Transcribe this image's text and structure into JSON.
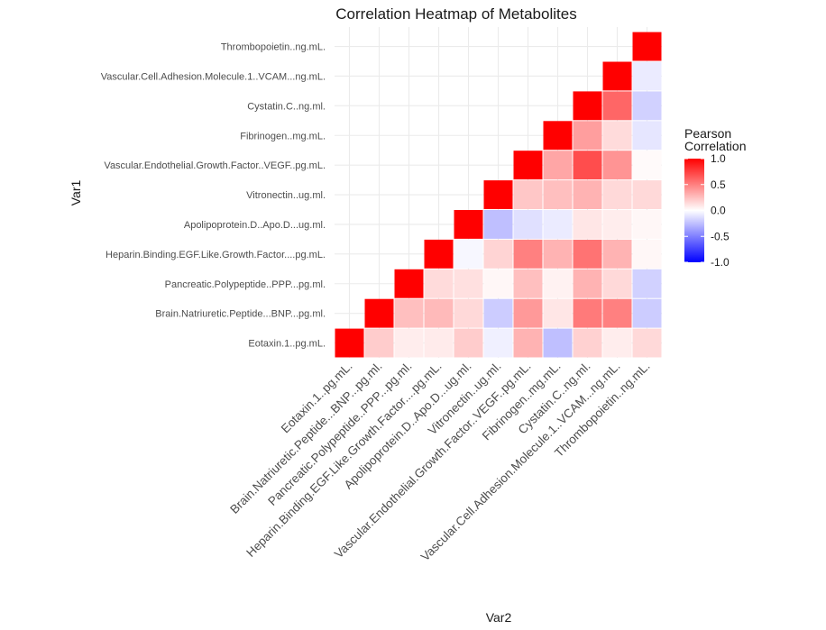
{
  "chart_data": {
    "type": "heatmap",
    "title": "Correlation Heatmap of Metabolites",
    "xlabel": "Var2",
    "ylabel": "Var1",
    "variables": [
      "Eotaxin.1..pg.mL.",
      "Brain.Natriuretic.Peptide...BNP...pg.ml.",
      "Pancreatic.Polypeptide..PPP...pg.ml.",
      "Heparin.Binding.EGF.Like.Growth.Factor....pg.mL.",
      "Apolipoprotein.D..Apo.D...ug.ml.",
      "Vitronectin..ug.ml.",
      "Vascular.Endothelial.Growth.Factor..VEGF..pg.mL.",
      "Fibrinogen..mg.mL.",
      "Cystatin.C..ng.ml.",
      "Vascular.Cell.Adhesion.Molecule.1..VCAM...ng.mL.",
      "Thrombopoietin..ng.mL."
    ],
    "x_tick_labels": [
      "Eotaxin.1..pg.mL.",
      "Brain.Natriuretic.Peptide...BNP...pg.ml.",
      "Pancreatic.Polypeptide..PPP...pg.ml.",
      "Heparin.Binding.EGF.Like.Growth.Factor....pg.mL.",
      "Apolipoprotein.D..Apo.D...ug.ml.",
      "Vitronectin..ug.ml.",
      "Vascular.Endothelial.Growth.Factor..VEGF..pg.mL.",
      "Fibrinogen..mg.mL.",
      "Cystatin.C..ng.ml.",
      "Vascular.Cell.Adhesion.Molecule.1..VCAM...ng.mL.",
      "Thrombopoietin..ng.mL."
    ],
    "y_tick_labels": [
      "Eotaxin.1..pg.mL.",
      "Brain.Natriuretic.Peptide...BNP...pg.ml.",
      "Pancreatic.Polypeptide..PPP...pg.ml.",
      "Heparin.Binding.EGF.Like.Growth.Factor....pg.mL.",
      "Apolipoprotein.D..Apo.D...ug.ml.",
      "Vitronectin..ug.ml.",
      "Vascular.Endothelial.Growth.Factor..VEGF..pg.mL.",
      "Fibrinogen..mg.mL.",
      "Cystatin.C..ng.ml.",
      "Vascular.Cell.Adhesion.Molecule.1..VCAM...ng.mL.",
      "Thrombopoietin..ng.mL."
    ],
    "cells": [
      {
        "x": "Eotaxin.1..pg.mL.",
        "y": "Eotaxin.1..pg.mL.",
        "value": 1.0
      },
      {
        "x": "Brain.Natriuretic.Peptide...BNP...pg.ml.",
        "y": "Eotaxin.1..pg.mL.",
        "value": 0.2
      },
      {
        "x": "Brain.Natriuretic.Peptide...BNP...pg.ml.",
        "y": "Brain.Natriuretic.Peptide...BNP...pg.ml.",
        "value": 1.0
      },
      {
        "x": "Pancreatic.Polypeptide..PPP...pg.ml.",
        "y": "Eotaxin.1..pg.mL.",
        "value": 0.07
      },
      {
        "x": "Pancreatic.Polypeptide..PPP...pg.ml.",
        "y": "Brain.Natriuretic.Peptide...BNP...pg.ml.",
        "value": 0.25
      },
      {
        "x": "Pancreatic.Polypeptide..PPP...pg.ml.",
        "y": "Pancreatic.Polypeptide..PPP...pg.ml.",
        "value": 1.0
      },
      {
        "x": "Heparin.Binding.EGF.Like.Growth.Factor....pg.mL.",
        "y": "Eotaxin.1..pg.mL.",
        "value": 0.08
      },
      {
        "x": "Heparin.Binding.EGF.Like.Growth.Factor....pg.mL.",
        "y": "Brain.Natriuretic.Peptide...BNP...pg.ml.",
        "value": 0.27
      },
      {
        "x": "Heparin.Binding.EGF.Like.Growth.Factor....pg.mL.",
        "y": "Pancreatic.Polypeptide..PPP...pg.ml.",
        "value": 0.14
      },
      {
        "x": "Heparin.Binding.EGF.Like.Growth.Factor....pg.mL.",
        "y": "Heparin.Binding.EGF.Like.Growth.Factor....pg.mL.",
        "value": 1.0
      },
      {
        "x": "Apolipoprotein.D..Apo.D...ug.ml.",
        "y": "Eotaxin.1..pg.mL.",
        "value": 0.2
      },
      {
        "x": "Apolipoprotein.D..Apo.D...ug.ml.",
        "y": "Brain.Natriuretic.Peptide...BNP...pg.ml.",
        "value": 0.15
      },
      {
        "x": "Apolipoprotein.D..Apo.D...ug.ml.",
        "y": "Pancreatic.Polypeptide..PPP...pg.ml.",
        "value": 0.12
      },
      {
        "x": "Apolipoprotein.D..Apo.D...ug.ml.",
        "y": "Heparin.Binding.EGF.Like.Growth.Factor....pg.mL.",
        "value": -0.03
      },
      {
        "x": "Apolipoprotein.D..Apo.D...ug.ml.",
        "y": "Apolipoprotein.D..Apo.D...ug.ml.",
        "value": 1.0
      },
      {
        "x": "Vitronectin..ug.ml.",
        "y": "Eotaxin.1..pg.mL.",
        "value": -0.06
      },
      {
        "x": "Vitronectin..ug.ml.",
        "y": "Brain.Natriuretic.Peptide...BNP...pg.ml.",
        "value": -0.2
      },
      {
        "x": "Vitronectin..ug.ml.",
        "y": "Pancreatic.Polypeptide..PPP...pg.ml.",
        "value": 0.03
      },
      {
        "x": "Vitronectin..ug.ml.",
        "y": "Heparin.Binding.EGF.Like.Growth.Factor....pg.mL.",
        "value": 0.17
      },
      {
        "x": "Vitronectin..ug.ml.",
        "y": "Apolipoprotein.D..Apo.D...ug.ml.",
        "value": -0.25
      },
      {
        "x": "Vitronectin..ug.ml.",
        "y": "Vitronectin..ug.ml.",
        "value": 1.0
      },
      {
        "x": "Vascular.Endothelial.Growth.Factor..VEGF..pg.mL.",
        "y": "Eotaxin.1..pg.mL.",
        "value": 0.3
      },
      {
        "x": "Vascular.Endothelial.Growth.Factor..VEGF..pg.mL.",
        "y": "Brain.Natriuretic.Peptide...BNP...pg.ml.",
        "value": 0.4
      },
      {
        "x": "Vascular.Endothelial.Growth.Factor..VEGF..pg.mL.",
        "y": "Pancreatic.Polypeptide..PPP...pg.ml.",
        "value": 0.25
      },
      {
        "x": "Vascular.Endothelial.Growth.Factor..VEGF..pg.mL.",
        "y": "Heparin.Binding.EGF.Like.Growth.Factor....pg.mL.",
        "value": 0.5
      },
      {
        "x": "Vascular.Endothelial.Growth.Factor..VEGF..pg.mL.",
        "y": "Apolipoprotein.D..Apo.D...ug.ml.",
        "value": -0.12
      },
      {
        "x": "Vascular.Endothelial.Growth.Factor..VEGF..pg.mL.",
        "y": "Vitronectin..ug.ml.",
        "value": 0.22
      },
      {
        "x": "Vascular.Endothelial.Growth.Factor..VEGF..pg.mL.",
        "y": "Vascular.Endothelial.Growth.Factor..VEGF..pg.mL.",
        "value": 1.0
      },
      {
        "x": "Fibrinogen..mg.mL.",
        "y": "Eotaxin.1..pg.mL.",
        "value": -0.25
      },
      {
        "x": "Fibrinogen..mg.mL.",
        "y": "Brain.Natriuretic.Peptide...BNP...pg.ml.",
        "value": 0.1
      },
      {
        "x": "Fibrinogen..mg.mL.",
        "y": "Pancreatic.Polypeptide..PPP...pg.ml.",
        "value": 0.05
      },
      {
        "x": "Fibrinogen..mg.mL.",
        "y": "Heparin.Binding.EGF.Like.Growth.Factor....pg.mL.",
        "value": 0.3
      },
      {
        "x": "Fibrinogen..mg.mL.",
        "y": "Apolipoprotein.D..Apo.D...ug.ml.",
        "value": -0.08
      },
      {
        "x": "Fibrinogen..mg.mL.",
        "y": "Vitronectin..ug.ml.",
        "value": 0.25
      },
      {
        "x": "Fibrinogen..mg.mL.",
        "y": "Vascular.Endothelial.Growth.Factor..VEGF..pg.mL.",
        "value": 0.35
      },
      {
        "x": "Fibrinogen..mg.mL.",
        "y": "Fibrinogen..mg.mL.",
        "value": 1.0
      },
      {
        "x": "Cystatin.C..ng.ml.",
        "y": "Eotaxin.1..pg.mL.",
        "value": 0.18
      },
      {
        "x": "Cystatin.C..ng.ml.",
        "y": "Brain.Natriuretic.Peptide...BNP...pg.ml.",
        "value": 0.52
      },
      {
        "x": "Cystatin.C..ng.ml.",
        "y": "Pancreatic.Polypeptide..PPP...pg.ml.",
        "value": 0.3
      },
      {
        "x": "Cystatin.C..ng.ml.",
        "y": "Heparin.Binding.EGF.Like.Growth.Factor....pg.mL.",
        "value": 0.55
      },
      {
        "x": "Cystatin.C..ng.ml.",
        "y": "Apolipoprotein.D..Apo.D...ug.ml.",
        "value": 0.1
      },
      {
        "x": "Cystatin.C..ng.ml.",
        "y": "Vitronectin..ug.ml.",
        "value": 0.3
      },
      {
        "x": "Cystatin.C..ng.ml.",
        "y": "Vascular.Endothelial.Growth.Factor..VEGF..pg.mL.",
        "value": 0.7
      },
      {
        "x": "Cystatin.C..ng.ml.",
        "y": "Fibrinogen..mg.mL.",
        "value": 0.38
      },
      {
        "x": "Cystatin.C..ng.ml.",
        "y": "Cystatin.C..ng.ml.",
        "value": 1.0
      },
      {
        "x": "Vascular.Cell.Adhesion.Molecule.1..VCAM...ng.mL.",
        "y": "Eotaxin.1..pg.mL.",
        "value": 0.07
      },
      {
        "x": "Vascular.Cell.Adhesion.Molecule.1..VCAM...ng.mL.",
        "y": "Brain.Natriuretic.Peptide...BNP...pg.ml.",
        "value": 0.5
      },
      {
        "x": "Vascular.Cell.Adhesion.Molecule.1..VCAM...ng.mL.",
        "y": "Pancreatic.Polypeptide..PPP...pg.ml.",
        "value": 0.15
      },
      {
        "x": "Vascular.Cell.Adhesion.Molecule.1..VCAM...ng.mL.",
        "y": "Heparin.Binding.EGF.Like.Growth.Factor....pg.mL.",
        "value": 0.3
      },
      {
        "x": "Vascular.Cell.Adhesion.Molecule.1..VCAM...ng.mL.",
        "y": "Apolipoprotein.D..Apo.D...ug.ml.",
        "value": 0.07
      },
      {
        "x": "Vascular.Cell.Adhesion.Molecule.1..VCAM...ng.mL.",
        "y": "Vitronectin..ug.ml.",
        "value": 0.15
      },
      {
        "x": "Vascular.Cell.Adhesion.Molecule.1..VCAM...ng.mL.",
        "y": "Vascular.Endothelial.Growth.Factor..VEGF..pg.mL.",
        "value": 0.42
      },
      {
        "x": "Vascular.Cell.Adhesion.Molecule.1..VCAM...ng.mL.",
        "y": "Fibrinogen..mg.mL.",
        "value": 0.14
      },
      {
        "x": "Vascular.Cell.Adhesion.Molecule.1..VCAM...ng.mL.",
        "y": "Cystatin.C..ng.ml.",
        "value": 0.6
      },
      {
        "x": "Vascular.Cell.Adhesion.Molecule.1..VCAM...ng.mL.",
        "y": "Vascular.Cell.Adhesion.Molecule.1..VCAM...ng.mL.",
        "value": 1.0
      },
      {
        "x": "Thrombopoietin..ng.mL.",
        "y": "Eotaxin.1..pg.mL.",
        "value": 0.15
      },
      {
        "x": "Thrombopoietin..ng.mL.",
        "y": "Brain.Natriuretic.Peptide...BNP...pg.ml.",
        "value": -0.2
      },
      {
        "x": "Thrombopoietin..ng.mL.",
        "y": "Pancreatic.Polypeptide..PPP...pg.ml.",
        "value": -0.18
      },
      {
        "x": "Thrombopoietin..ng.mL.",
        "y": "Heparin.Binding.EGF.Like.Growth.Factor....pg.mL.",
        "value": 0.03
      },
      {
        "x": "Thrombopoietin..ng.mL.",
        "y": "Apolipoprotein.D..Apo.D...ug.ml.",
        "value": 0.03
      },
      {
        "x": "Thrombopoietin..ng.mL.",
        "y": "Vitronectin..ug.ml.",
        "value": 0.15
      },
      {
        "x": "Thrombopoietin..ng.mL.",
        "y": "Vascular.Endothelial.Growth.Factor..VEGF..pg.mL.",
        "value": 0.02
      },
      {
        "x": "Thrombopoietin..ng.mL.",
        "y": "Fibrinogen..mg.mL.",
        "value": -0.1
      },
      {
        "x": "Thrombopoietin..ng.mL.",
        "y": "Cystatin.C..ng.ml.",
        "value": -0.18
      },
      {
        "x": "Thrombopoietin..ng.mL.",
        "y": "Vascular.Cell.Adhesion.Molecule.1..VCAM...ng.mL.",
        "value": -0.08
      },
      {
        "x": "Thrombopoietin..ng.mL.",
        "y": "Thrombopoietin..ng.mL.",
        "value": 1.0
      }
    ],
    "value_range": [
      -1,
      1
    ],
    "grid": true,
    "legend": {
      "title_lines": [
        "Pearson",
        "Correlation"
      ],
      "ticks": [
        1.0,
        0.5,
        0.0,
        -0.5,
        -1.0
      ],
      "tick_labels": [
        "1.0",
        "0.5",
        "0.0",
        "-0.5",
        "-1.0"
      ],
      "colors": {
        "low": "#0000ff",
        "mid": "#ffffff",
        "high": "#ff0000"
      },
      "position": "right"
    }
  }
}
